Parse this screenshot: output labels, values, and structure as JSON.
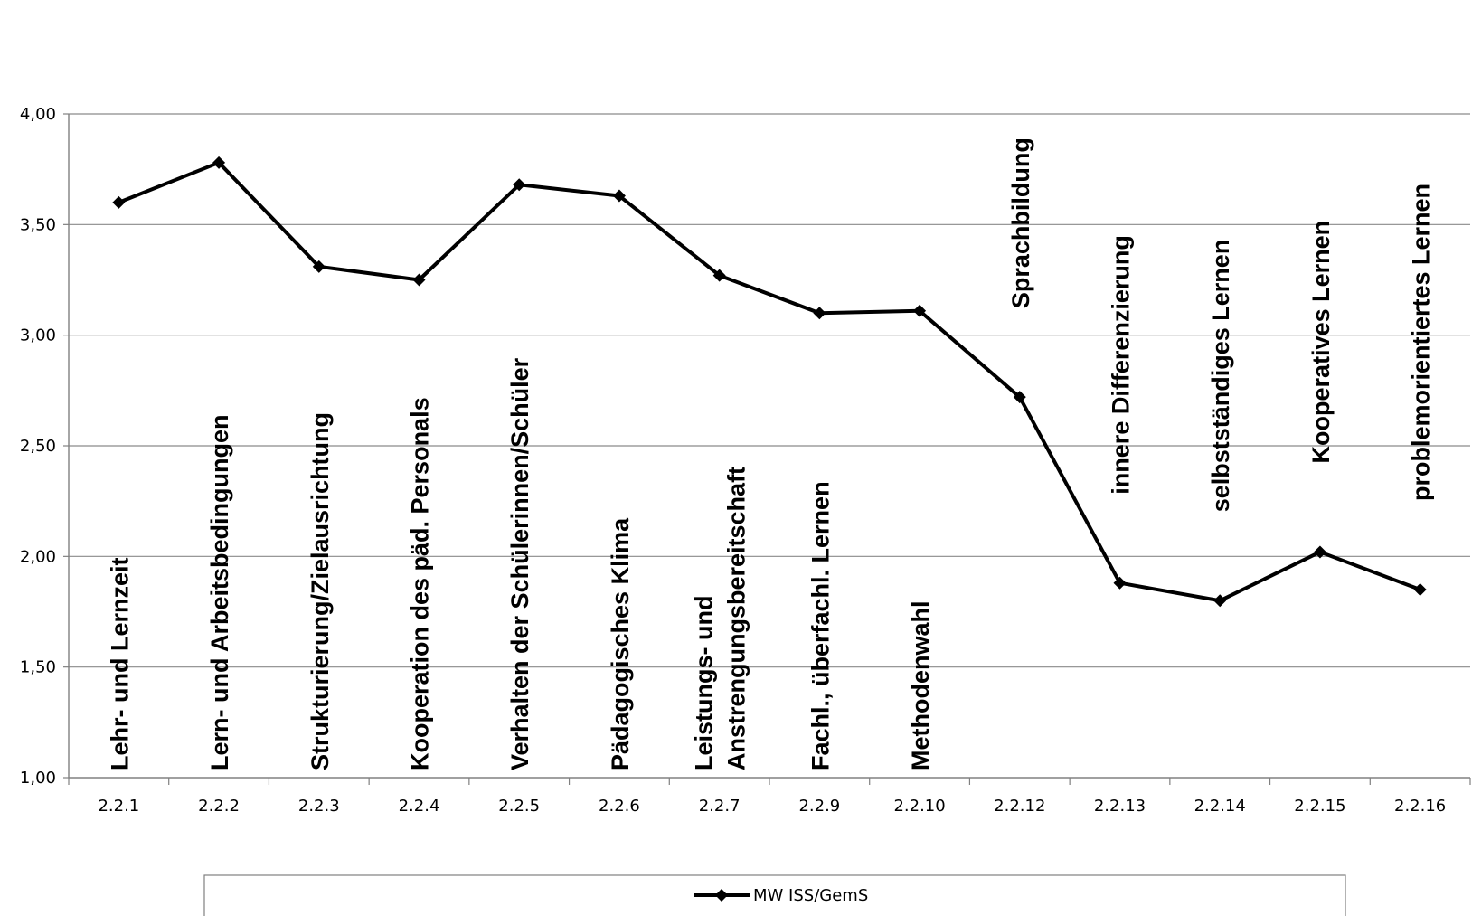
{
  "chart_data": {
    "type": "line",
    "categories": [
      "2.2.1",
      "2.2.2",
      "2.2.3",
      "2.2.4",
      "2.2.5",
      "2.2.6",
      "2.2.7",
      "2.2.9",
      "2.2.10",
      "2.2.12",
      "2.2.13",
      "2.2.14",
      "2.2.15",
      "2.2.16"
    ],
    "category_notes": [
      [
        "Lehr- und Lernzeit"
      ],
      [
        "Lern- und Arbeitsbedingungen"
      ],
      [
        "Strukturierung/Zielausrichtung"
      ],
      [
        "Kooperation des päd. Personals"
      ],
      [
        "Verhalten der Schülerinnen/Schüler"
      ],
      [
        "Pädagogisches Klima"
      ],
      [
        "Leistungs- und",
        "Anstrengungsbereitschaft"
      ],
      [
        "Fachl., überfachl. Lernen"
      ],
      [
        "Methodenwahl"
      ],
      [
        "Sprachbildung"
      ],
      [
        "innere Differenzierung"
      ],
      [
        "selbstständiges Lernen"
      ],
      [
        "Kooperatives Lernen"
      ],
      [
        "problemorientiertes Lernen"
      ]
    ],
    "series": [
      {
        "name": "MW ISS/GemS",
        "values": [
          3.6,
          3.78,
          3.31,
          3.25,
          3.68,
          3.63,
          3.27,
          3.1,
          3.11,
          2.72,
          1.88,
          1.8,
          2.02,
          1.85
        ],
        "color": "#000000",
        "marker": "diamond"
      }
    ],
    "ylim": [
      1.0,
      4.0
    ],
    "yticks": [
      "1,00",
      "1,50",
      "2,00",
      "2,50",
      "3,00",
      "3,50",
      "4,00"
    ],
    "ytick_values": [
      1.0,
      1.5,
      2.0,
      2.5,
      3.0,
      3.5,
      4.0
    ],
    "grid": true,
    "legend_position": "bottom",
    "title": "",
    "xlabel": "",
    "ylabel": ""
  }
}
